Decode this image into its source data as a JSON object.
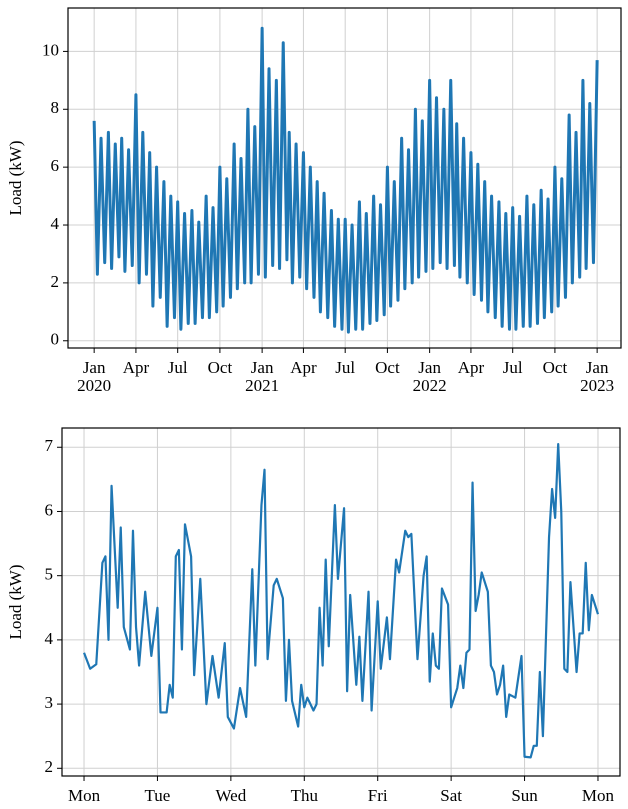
{
  "chart_data": [
    {
      "type": "line",
      "ylabel": "Load (kW)",
      "color": "#1f77b4",
      "grid": true,
      "xlim": [
        "2019-11-05",
        "2023-02-22"
      ],
      "ylim": [
        -0.25,
        11.5
      ],
      "xticks": [
        {
          "value": "2020-01-01",
          "label": "Jan 2020"
        },
        {
          "value": "2020-04-01",
          "label": "Apr"
        },
        {
          "value": "2020-07-01",
          "label": "Jul"
        },
        {
          "value": "2020-10-01",
          "label": "Oct"
        },
        {
          "value": "2021-01-01",
          "label": "Jan 2021"
        },
        {
          "value": "2021-04-01",
          "label": "Apr"
        },
        {
          "value": "2021-07-01",
          "label": "Jul"
        },
        {
          "value": "2021-10-01",
          "label": "Oct"
        },
        {
          "value": "2022-01-01",
          "label": "Jan 2022"
        },
        {
          "value": "2022-04-01",
          "label": "Apr"
        },
        {
          "value": "2022-07-01",
          "label": "Jul"
        },
        {
          "value": "2022-10-01",
          "label": "Oct"
        },
        {
          "value": "2023-01-01",
          "label": "Jan 2023"
        }
      ],
      "yticks": [
        0,
        2,
        4,
        6,
        8,
        10
      ],
      "x": [
        "2020-01-01",
        "2020-01-08",
        "2020-01-16",
        "2020-01-24",
        "2020-02-01",
        "2020-02-08",
        "2020-02-16",
        "2020-02-24",
        "2020-03-01",
        "2020-03-08",
        "2020-03-16",
        "2020-03-24",
        "2020-04-01",
        "2020-04-08",
        "2020-04-16",
        "2020-04-24",
        "2020-05-01",
        "2020-05-08",
        "2020-05-16",
        "2020-05-24",
        "2020-06-01",
        "2020-06-08",
        "2020-06-16",
        "2020-06-24",
        "2020-07-01",
        "2020-07-08",
        "2020-07-16",
        "2020-07-24",
        "2020-08-01",
        "2020-08-08",
        "2020-08-16",
        "2020-08-24",
        "2020-09-01",
        "2020-09-08",
        "2020-09-16",
        "2020-09-24",
        "2020-10-01",
        "2020-10-08",
        "2020-10-16",
        "2020-10-24",
        "2020-11-01",
        "2020-11-08",
        "2020-11-16",
        "2020-11-24",
        "2020-12-01",
        "2020-12-08",
        "2020-12-16",
        "2020-12-24",
        "2021-01-01",
        "2021-01-08",
        "2021-01-16",
        "2021-01-24",
        "2021-02-01",
        "2021-02-08",
        "2021-02-16",
        "2021-02-24",
        "2021-03-01",
        "2021-03-08",
        "2021-03-16",
        "2021-03-24",
        "2021-04-01",
        "2021-04-08",
        "2021-04-16",
        "2021-04-24",
        "2021-05-01",
        "2021-05-08",
        "2021-05-16",
        "2021-05-24",
        "2021-06-01",
        "2021-06-08",
        "2021-06-16",
        "2021-06-24",
        "2021-07-01",
        "2021-07-08",
        "2021-07-16",
        "2021-07-24",
        "2021-08-01",
        "2021-08-08",
        "2021-08-16",
        "2021-08-24",
        "2021-09-01",
        "2021-09-08",
        "2021-09-16",
        "2021-09-24",
        "2021-10-01",
        "2021-10-08",
        "2021-10-16",
        "2021-10-24",
        "2021-11-01",
        "2021-11-08",
        "2021-11-16",
        "2021-11-24",
        "2021-12-01",
        "2021-12-08",
        "2021-12-16",
        "2021-12-24",
        "2022-01-01",
        "2022-01-08",
        "2022-01-16",
        "2022-01-24",
        "2022-02-01",
        "2022-02-08",
        "2022-02-16",
        "2022-02-24",
        "2022-03-01",
        "2022-03-08",
        "2022-03-16",
        "2022-03-24",
        "2022-04-01",
        "2022-04-08",
        "2022-04-16",
        "2022-04-24",
        "2022-05-01",
        "2022-05-08",
        "2022-05-16",
        "2022-05-24",
        "2022-06-01",
        "2022-06-08",
        "2022-06-16",
        "2022-06-24",
        "2022-07-01",
        "2022-07-08",
        "2022-07-16",
        "2022-07-24",
        "2022-08-01",
        "2022-08-08",
        "2022-08-16",
        "2022-08-24",
        "2022-09-01",
        "2022-09-08",
        "2022-09-16",
        "2022-09-24",
        "2022-10-01",
        "2022-10-08",
        "2022-10-16",
        "2022-10-24",
        "2022-11-01",
        "2022-11-08",
        "2022-11-16",
        "2022-11-24",
        "2022-12-01",
        "2022-12-08",
        "2022-12-16",
        "2022-12-24",
        "2023-01-01"
      ],
      "values": [
        7.6,
        2.3,
        7.0,
        2.7,
        7.2,
        2.5,
        6.8,
        2.9,
        7.0,
        2.4,
        6.6,
        2.6,
        8.5,
        2.0,
        7.2,
        2.3,
        6.5,
        1.2,
        6.0,
        1.5,
        5.5,
        0.5,
        5.0,
        0.8,
        4.8,
        0.4,
        4.4,
        0.6,
        4.5,
        0.6,
        4.1,
        0.8,
        5.0,
        0.8,
        4.6,
        1.0,
        6.0,
        1.2,
        5.6,
        1.5,
        6.8,
        1.8,
        6.3,
        2.0,
        8.0,
        2.0,
        7.4,
        2.3,
        10.8,
        2.2,
        9.4,
        2.6,
        9.0,
        2.5,
        10.3,
        2.8,
        7.2,
        2.0,
        6.8,
        2.2,
        6.5,
        1.8,
        6.0,
        1.5,
        5.5,
        1.0,
        5.1,
        0.8,
        4.5,
        0.5,
        4.2,
        0.4,
        4.2,
        0.3,
        4.0,
        0.4,
        4.8,
        0.4,
        4.4,
        0.6,
        5.0,
        0.7,
        4.7,
        0.9,
        6.0,
        1.2,
        5.5,
        1.4,
        7.0,
        1.8,
        6.6,
        2.0,
        8.0,
        2.2,
        7.6,
        2.4,
        9.0,
        2.5,
        8.4,
        2.7,
        8.0,
        2.5,
        9.0,
        2.6,
        7.5,
        2.2,
        7.0,
        2.0,
        6.5,
        1.6,
        6.1,
        1.4,
        5.5,
        1.0,
        5.0,
        0.8,
        4.8,
        0.5,
        4.4,
        0.4,
        4.6,
        0.4,
        4.3,
        0.5,
        5.0,
        0.5,
        4.7,
        0.6,
        5.2,
        0.8,
        4.9,
        1.0,
        6.0,
        1.2,
        5.6,
        1.5,
        7.8,
        2.0,
        7.2,
        2.2,
        9.0,
        2.5,
        8.2,
        2.7,
        9.7
      ]
    },
    {
      "type": "line",
      "ylabel": "Load (kW)",
      "color": "#1f77b4",
      "grid": true,
      "xlim": [
        -7.2,
        175.2
      ],
      "ylim": [
        1.88,
        7.3
      ],
      "xticks": [
        {
          "value": 0,
          "label": "Mon"
        },
        {
          "value": 24,
          "label": "Tue"
        },
        {
          "value": 48,
          "label": "Wed"
        },
        {
          "value": 72,
          "label": "Thu"
        },
        {
          "value": 96,
          "label": "Fri"
        },
        {
          "value": 120,
          "label": "Sat"
        },
        {
          "value": 144,
          "label": "Sun"
        },
        {
          "value": 168,
          "label": "Mon"
        }
      ],
      "yticks": [
        2,
        3,
        4,
        5,
        6,
        7
      ],
      "x": [
        0,
        2,
        4,
        6,
        7,
        8,
        9,
        11,
        12,
        13,
        15,
        16,
        17,
        18,
        20,
        22,
        24,
        25,
        27,
        28,
        29,
        30,
        31,
        32,
        33,
        35,
        36,
        38,
        40,
        42,
        44,
        46,
        47,
        49,
        51,
        53,
        55,
        56,
        58,
        59,
        60,
        62,
        63,
        65,
        66,
        67,
        68,
        70,
        71,
        72,
        73,
        75,
        76,
        77,
        78,
        79,
        80,
        82,
        83,
        85,
        86,
        87,
        89,
        90,
        91,
        93,
        94,
        96,
        97,
        99,
        100,
        102,
        103,
        105,
        106,
        107,
        109,
        111,
        112,
        113,
        114,
        115,
        116,
        117,
        119,
        120,
        122,
        123,
        124,
        125,
        126,
        127,
        128,
        129,
        130,
        132,
        133,
        134,
        135,
        136,
        137,
        138,
        139,
        141,
        143,
        144,
        146,
        147,
        148,
        149,
        150,
        152,
        153,
        154,
        155,
        156,
        157,
        158,
        159,
        161,
        162,
        163,
        164,
        165,
        166,
        168
      ],
      "values": [
        3.8,
        3.55,
        3.62,
        5.2,
        5.3,
        4.0,
        6.4,
        4.5,
        5.75,
        4.2,
        3.85,
        5.7,
        4.2,
        3.6,
        4.75,
        3.75,
        4.5,
        2.87,
        2.87,
        3.3,
        3.1,
        5.3,
        5.4,
        3.85,
        5.8,
        5.3,
        3.45,
        4.95,
        3.0,
        3.75,
        3.1,
        3.95,
        2.8,
        2.62,
        3.25,
        2.8,
        5.1,
        3.6,
        6.1,
        6.65,
        3.7,
        4.85,
        4.95,
        4.65,
        3.05,
        4.0,
        3.05,
        2.65,
        3.3,
        2.95,
        3.1,
        2.9,
        3.0,
        4.5,
        3.6,
        5.25,
        3.9,
        6.1,
        4.95,
        6.05,
        3.2,
        4.7,
        3.3,
        4.05,
        3.05,
        4.75,
        2.9,
        4.6,
        3.55,
        4.35,
        3.7,
        5.25,
        5.05,
        5.7,
        5.6,
        5.65,
        3.7,
        5.0,
        5.3,
        3.35,
        4.1,
        3.6,
        3.55,
        4.8,
        4.55,
        2.95,
        3.25,
        3.6,
        3.25,
        3.8,
        3.85,
        6.45,
        4.45,
        4.7,
        5.05,
        4.75,
        3.6,
        3.5,
        3.15,
        3.3,
        3.6,
        2.8,
        3.15,
        3.1,
        3.75,
        2.18,
        2.17,
        2.35,
        2.35,
        3.5,
        2.5,
        5.6,
        6.35,
        5.9,
        7.05,
        6.0,
        3.55,
        3.5,
        4.9,
        3.5,
        4.1,
        4.1,
        5.2,
        4.15,
        4.7,
        4.4
      ]
    }
  ]
}
